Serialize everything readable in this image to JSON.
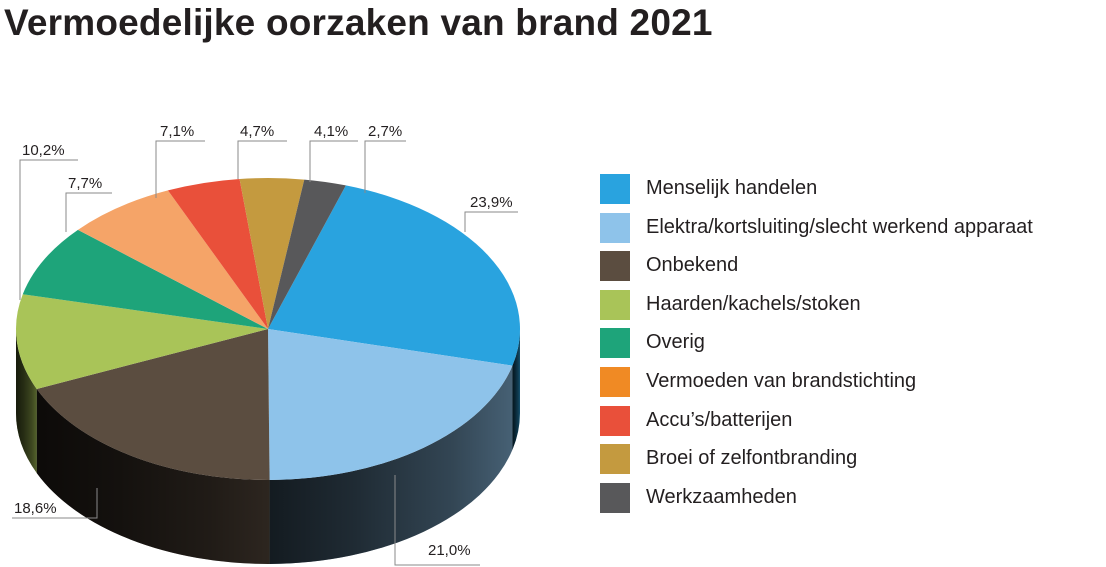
{
  "chart_data": {
    "type": "pie",
    "title": "Vermoedelijke oorzaken van brand 2021",
    "slices": [
      {
        "label": "Menselijk handelen",
        "value": 23.9,
        "display": "23,9%",
        "color": "#29a3df"
      },
      {
        "label": "Elektra/kortsluiting/slecht werkend apparaat",
        "value": 21.0,
        "display": "21,0%",
        "color": "#8ec3ea"
      },
      {
        "label": "Onbekend",
        "value": 18.6,
        "display": "18,6%",
        "color": "#5b4d40"
      },
      {
        "label": "Haarden/kachels/stoken",
        "value": 10.2,
        "display": "10,2%",
        "color": "#a9c458"
      },
      {
        "label": "Overig",
        "value": 7.7,
        "display": "7,7%",
        "color": "#1ea47a"
      },
      {
        "label": "Vermoeden van brandstichting",
        "value": 7.1,
        "display": "7,1%",
        "color": "#f08a24",
        "pie_color": "#f5a468"
      },
      {
        "label": "Accu’s/batterijen",
        "value": 4.7,
        "display": "4,7%",
        "color": "#e9503a"
      },
      {
        "label": "Broei of zelfontbranding",
        "value": 4.1,
        "display": "4,1%",
        "color": "#c49a3f"
      },
      {
        "label": "Werkzaamheden",
        "value": 2.7,
        "display": "2,7%",
        "color": "#58585a"
      }
    ],
    "legend_position": "right"
  }
}
